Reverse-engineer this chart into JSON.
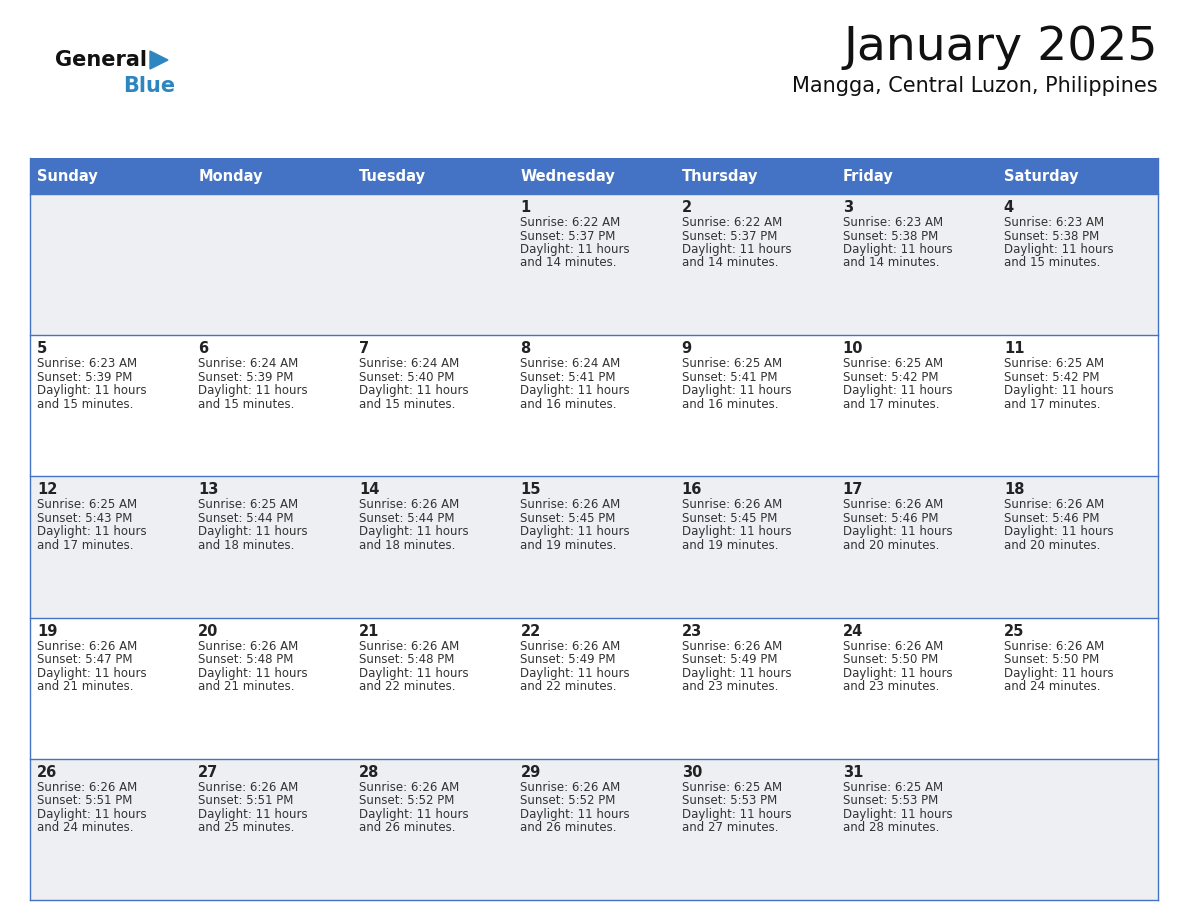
{
  "title": "January 2025",
  "subtitle": "Mangga, Central Luzon, Philippines",
  "days_of_week": [
    "Sunday",
    "Monday",
    "Tuesday",
    "Wednesday",
    "Thursday",
    "Friday",
    "Saturday"
  ],
  "header_bg": "#4472C4",
  "header_text": "#FFFFFF",
  "cell_bg_odd": "#EEEFF3",
  "cell_bg_even": "#FFFFFF",
  "border_color": "#4472C4",
  "day_num_color": "#222222",
  "text_color": "#333333",
  "title_color": "#111111",
  "logo_general_color": "#111111",
  "logo_blue_color": "#2E86C1",
  "calendar": [
    [
      null,
      null,
      null,
      {
        "day": 1,
        "sunrise": "6:22 AM",
        "sunset": "5:37 PM",
        "daylight": "11 hours and 14 minutes."
      },
      {
        "day": 2,
        "sunrise": "6:22 AM",
        "sunset": "5:37 PM",
        "daylight": "11 hours and 14 minutes."
      },
      {
        "day": 3,
        "sunrise": "6:23 AM",
        "sunset": "5:38 PM",
        "daylight": "11 hours and 14 minutes."
      },
      {
        "day": 4,
        "sunrise": "6:23 AM",
        "sunset": "5:38 PM",
        "daylight": "11 hours and 15 minutes."
      }
    ],
    [
      {
        "day": 5,
        "sunrise": "6:23 AM",
        "sunset": "5:39 PM",
        "daylight": "11 hours and 15 minutes."
      },
      {
        "day": 6,
        "sunrise": "6:24 AM",
        "sunset": "5:39 PM",
        "daylight": "11 hours and 15 minutes."
      },
      {
        "day": 7,
        "sunrise": "6:24 AM",
        "sunset": "5:40 PM",
        "daylight": "11 hours and 15 minutes."
      },
      {
        "day": 8,
        "sunrise": "6:24 AM",
        "sunset": "5:41 PM",
        "daylight": "11 hours and 16 minutes."
      },
      {
        "day": 9,
        "sunrise": "6:25 AM",
        "sunset": "5:41 PM",
        "daylight": "11 hours and 16 minutes."
      },
      {
        "day": 10,
        "sunrise": "6:25 AM",
        "sunset": "5:42 PM",
        "daylight": "11 hours and 17 minutes."
      },
      {
        "day": 11,
        "sunrise": "6:25 AM",
        "sunset": "5:42 PM",
        "daylight": "11 hours and 17 minutes."
      }
    ],
    [
      {
        "day": 12,
        "sunrise": "6:25 AM",
        "sunset": "5:43 PM",
        "daylight": "11 hours and 17 minutes."
      },
      {
        "day": 13,
        "sunrise": "6:25 AM",
        "sunset": "5:44 PM",
        "daylight": "11 hours and 18 minutes."
      },
      {
        "day": 14,
        "sunrise": "6:26 AM",
        "sunset": "5:44 PM",
        "daylight": "11 hours and 18 minutes."
      },
      {
        "day": 15,
        "sunrise": "6:26 AM",
        "sunset": "5:45 PM",
        "daylight": "11 hours and 19 minutes."
      },
      {
        "day": 16,
        "sunrise": "6:26 AM",
        "sunset": "5:45 PM",
        "daylight": "11 hours and 19 minutes."
      },
      {
        "day": 17,
        "sunrise": "6:26 AM",
        "sunset": "5:46 PM",
        "daylight": "11 hours and 20 minutes."
      },
      {
        "day": 18,
        "sunrise": "6:26 AM",
        "sunset": "5:46 PM",
        "daylight": "11 hours and 20 minutes."
      }
    ],
    [
      {
        "day": 19,
        "sunrise": "6:26 AM",
        "sunset": "5:47 PM",
        "daylight": "11 hours and 21 minutes."
      },
      {
        "day": 20,
        "sunrise": "6:26 AM",
        "sunset": "5:48 PM",
        "daylight": "11 hours and 21 minutes."
      },
      {
        "day": 21,
        "sunrise": "6:26 AM",
        "sunset": "5:48 PM",
        "daylight": "11 hours and 22 minutes."
      },
      {
        "day": 22,
        "sunrise": "6:26 AM",
        "sunset": "5:49 PM",
        "daylight": "11 hours and 22 minutes."
      },
      {
        "day": 23,
        "sunrise": "6:26 AM",
        "sunset": "5:49 PM",
        "daylight": "11 hours and 23 minutes."
      },
      {
        "day": 24,
        "sunrise": "6:26 AM",
        "sunset": "5:50 PM",
        "daylight": "11 hours and 23 minutes."
      },
      {
        "day": 25,
        "sunrise": "6:26 AM",
        "sunset": "5:50 PM",
        "daylight": "11 hours and 24 minutes."
      }
    ],
    [
      {
        "day": 26,
        "sunrise": "6:26 AM",
        "sunset": "5:51 PM",
        "daylight": "11 hours and 24 minutes."
      },
      {
        "day": 27,
        "sunrise": "6:26 AM",
        "sunset": "5:51 PM",
        "daylight": "11 hours and 25 minutes."
      },
      {
        "day": 28,
        "sunrise": "6:26 AM",
        "sunset": "5:52 PM",
        "daylight": "11 hours and 26 minutes."
      },
      {
        "day": 29,
        "sunrise": "6:26 AM",
        "sunset": "5:52 PM",
        "daylight": "11 hours and 26 minutes."
      },
      {
        "day": 30,
        "sunrise": "6:25 AM",
        "sunset": "5:53 PM",
        "daylight": "11 hours and 27 minutes."
      },
      {
        "day": 31,
        "sunrise": "6:25 AM",
        "sunset": "5:53 PM",
        "daylight": "11 hours and 28 minutes."
      },
      null
    ]
  ]
}
